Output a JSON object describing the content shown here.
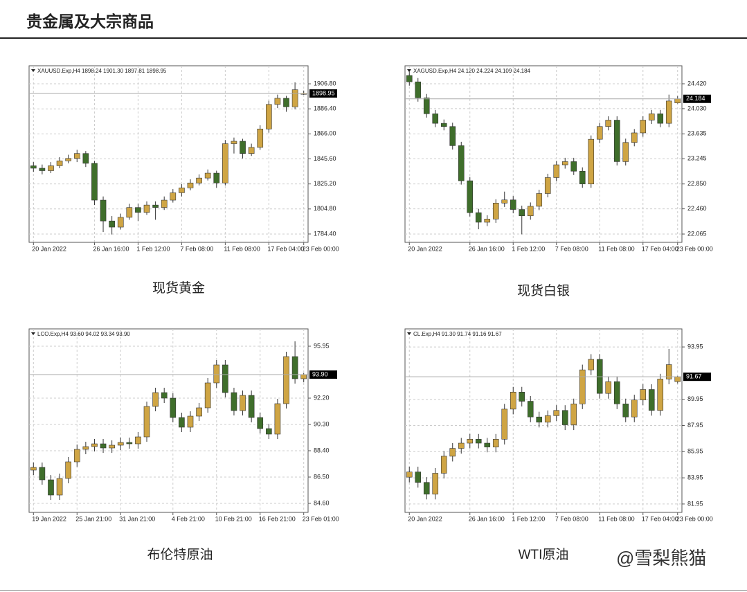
{
  "page": {
    "title": "贵金属及大宗商品",
    "watermark": "@雪梨熊猫"
  },
  "chart_data": [
    {
      "type": "candlestick",
      "header": "XAUUSD.Exp,H4  1898.24 1901.30 1897.81 1898.95",
      "caption": "现货黄金",
      "up_color": "#cfa544",
      "down_color": "#3f6e2b",
      "grid": true,
      "categories": [
        "20 Jan 2022",
        null,
        null,
        null,
        null,
        null,
        null,
        "26 Jan 16:00",
        null,
        null,
        null,
        null,
        "1 Feb 12:00",
        null,
        null,
        null,
        null,
        "7 Feb 08:00",
        null,
        null,
        null,
        null,
        "11 Feb 08:00",
        null,
        null,
        null,
        null,
        "17 Feb 04:00",
        null,
        null,
        null,
        "23 Feb 00:00"
      ],
      "open": [
        1840,
        1838,
        1836,
        1840,
        1844,
        1846,
        1850,
        1842,
        1812,
        1795,
        1790,
        1798,
        1806,
        1802,
        1808,
        1806,
        1812,
        1818,
        1822,
        1826,
        1830,
        1834,
        1826,
        1858,
        1860,
        1850,
        1855,
        1870,
        1890,
        1895,
        1888,
        1898.24
      ],
      "high": [
        1843,
        1841,
        1843,
        1847,
        1849,
        1853,
        1852,
        1844,
        1815,
        1799,
        1801,
        1809,
        1809,
        1811,
        1811,
        1815,
        1821,
        1825,
        1829,
        1833,
        1837,
        1836,
        1861,
        1863,
        1862,
        1858,
        1873,
        1893,
        1898,
        1897,
        1908,
        1901.3
      ],
      "low": [
        1835,
        1833,
        1834,
        1838,
        1842,
        1843,
        1839,
        1808,
        1786,
        1784,
        1788,
        1796,
        1795,
        1800,
        1796,
        1804,
        1810,
        1815,
        1820,
        1824,
        1828,
        1822,
        1824,
        1850,
        1846,
        1848,
        1853,
        1867,
        1887,
        1884,
        1886,
        1897.81
      ],
      "close": [
        1838,
        1836,
        1840,
        1844,
        1846,
        1850,
        1842,
        1812,
        1795,
        1790,
        1798,
        1806,
        1802,
        1808,
        1806,
        1812,
        1818,
        1822,
        1826,
        1830,
        1834,
        1826,
        1858,
        1860,
        1850,
        1855,
        1870,
        1890,
        1895,
        1888,
        1902,
        1898.95
      ],
      "ylim": [
        1777.6,
        1921.5
      ],
      "yticks": [
        {
          "value": 1906.8,
          "label": "1906.80"
        },
        {
          "value": 1886.4,
          "label": "1886.40"
        },
        {
          "value": 1866,
          "label": "1866.00"
        },
        {
          "value": 1845.6,
          "label": "1845.60"
        },
        {
          "value": 1825.2,
          "label": "1825.20"
        },
        {
          "value": 1804.8,
          "label": "1804.80"
        },
        {
          "value": 1784.4,
          "label": "1784.40"
        }
      ],
      "last_price": {
        "value": 1898.95,
        "label": "1898.95"
      }
    },
    {
      "type": "candlestick",
      "header": "XAGUSD.Exp,H4  24.120 24.224 24.109 24.184",
      "caption": "现货白银",
      "up_color": "#cfa544",
      "down_color": "#3f6e2b",
      "grid": true,
      "categories": [
        "20 Jan 2022",
        null,
        null,
        null,
        null,
        null,
        null,
        "26 Jan 16:00",
        null,
        null,
        null,
        null,
        "1 Feb 12:00",
        null,
        null,
        null,
        null,
        "7 Feb 08:00",
        null,
        null,
        null,
        null,
        "11 Feb 08:00",
        null,
        null,
        null,
        null,
        "17 Feb 04:00",
        null,
        null,
        null,
        "23 Feb 00:00"
      ],
      "open": [
        24.55,
        24.45,
        24.2,
        23.95,
        23.8,
        23.75,
        23.45,
        22.9,
        22.4,
        22.25,
        22.3,
        22.55,
        22.6,
        22.45,
        22.35,
        22.5,
        22.7,
        22.95,
        23.15,
        23.2,
        23.05,
        22.85,
        23.55,
        23.75,
        23.85,
        23.2,
        23.5,
        23.65,
        23.85,
        23.95,
        23.8,
        24.12
      ],
      "high": [
        24.61,
        24.51,
        24.26,
        24.01,
        23.86,
        23.81,
        23.51,
        22.96,
        22.46,
        22.36,
        22.61,
        22.73,
        22.66,
        22.51,
        22.56,
        22.76,
        23.01,
        23.21,
        23.26,
        23.26,
        23.11,
        23.61,
        23.81,
        23.91,
        23.91,
        23.56,
        23.71,
        23.91,
        24.01,
        24.01,
        24.25,
        24.224
      ],
      "low": [
        24.39,
        24.14,
        23.89,
        23.74,
        23.69,
        23.39,
        22.84,
        22.34,
        22.14,
        22.19,
        22.24,
        22.49,
        22.39,
        22.06,
        22.29,
        22.44,
        22.64,
        22.89,
        23.09,
        22.99,
        22.79,
        22.79,
        23.49,
        23.69,
        23.14,
        23.14,
        23.44,
        23.59,
        23.79,
        23.74,
        23.74,
        24.109
      ],
      "close": [
        24.45,
        24.2,
        23.95,
        23.8,
        23.75,
        23.45,
        22.9,
        22.4,
        22.25,
        22.3,
        22.55,
        22.6,
        22.45,
        22.35,
        22.5,
        22.7,
        22.95,
        23.15,
        23.2,
        23.05,
        22.85,
        23.55,
        23.75,
        23.85,
        23.2,
        23.5,
        23.65,
        23.85,
        23.95,
        23.8,
        24.15,
        24.184
      ],
      "ylim": [
        21.935,
        24.702
      ],
      "yticks": [
        {
          "value": 24.42,
          "label": "24.420"
        },
        {
          "value": 24.03,
          "label": "24.030"
        },
        {
          "value": 23.635,
          "label": "23.635"
        },
        {
          "value": 23.245,
          "label": "23.245"
        },
        {
          "value": 22.85,
          "label": "22.850"
        },
        {
          "value": 22.46,
          "label": "22.460"
        },
        {
          "value": 22.065,
          "label": "22.065"
        }
      ],
      "last_price": {
        "value": 24.184,
        "label": "24.184"
      }
    },
    {
      "type": "candlestick",
      "header": "LCO.Exp,H4  93.60 94.02 93.34 93.90",
      "caption": "布伦特原油",
      "up_color": "#cfa544",
      "down_color": "#3f6e2b",
      "grid": true,
      "categories": [
        "19 Jan 2022",
        null,
        null,
        null,
        null,
        "25 Jan 21:00",
        null,
        null,
        null,
        null,
        "31 Jan 21:00",
        null,
        null,
        null,
        null,
        null,
        "4 Feb 21:00",
        null,
        null,
        null,
        null,
        "10 Feb 21:00",
        null,
        null,
        null,
        null,
        "16 Feb 21:00",
        null,
        null,
        null,
        null,
        "23 Feb 01:00"
      ],
      "open": [
        87.0,
        87.2,
        86.3,
        85.2,
        86.4,
        87.6,
        88.5,
        88.7,
        88.9,
        88.6,
        88.8,
        89.0,
        88.9,
        89.4,
        91.6,
        92.6,
        92.2,
        90.8,
        90.1,
        90.9,
        91.5,
        93.3,
        94.6,
        92.6,
        91.3,
        92.4,
        90.8,
        90.0,
        89.6,
        91.8,
        95.2,
        93.6
      ],
      "high": [
        87.55,
        87.55,
        86.65,
        86.75,
        87.95,
        88.85,
        89.05,
        89.25,
        89.25,
        89.15,
        89.35,
        89.35,
        89.75,
        91.95,
        92.95,
        92.95,
        92.55,
        91.15,
        91.25,
        91.85,
        93.65,
        94.95,
        94.95,
        92.95,
        92.75,
        92.75,
        91.15,
        90.35,
        92.15,
        95.55,
        96.3,
        94.02
      ],
      "low": [
        86.65,
        85.95,
        84.85,
        84.85,
        86.05,
        87.25,
        88.15,
        88.35,
        88.25,
        88.25,
        88.45,
        88.55,
        88.55,
        89.05,
        91.25,
        91.85,
        90.45,
        89.75,
        89.75,
        90.55,
        91.15,
        92.95,
        92.25,
        90.95,
        90.95,
        90.45,
        89.65,
        89.25,
        89.25,
        91.45,
        93.25,
        93.34
      ],
      "close": [
        87.2,
        86.3,
        85.2,
        86.4,
        87.6,
        88.5,
        88.7,
        88.9,
        88.6,
        88.8,
        89.0,
        88.9,
        89.4,
        91.6,
        92.6,
        92.2,
        90.8,
        90.1,
        90.9,
        91.5,
        93.3,
        94.6,
        92.6,
        91.3,
        92.4,
        90.8,
        90.0,
        89.6,
        91.8,
        95.2,
        93.6,
        93.9
      ],
      "ylim": [
        83.95,
        97.2
      ],
      "yticks": [
        {
          "value": 95.95,
          "label": "95.95"
        },
        {
          "value": 92.2,
          "label": "92.20"
        },
        {
          "value": 90.3,
          "label": "90.30"
        },
        {
          "value": 88.4,
          "label": "88.40"
        },
        {
          "value": 86.5,
          "label": "86.50"
        },
        {
          "value": 84.6,
          "label": "84.60"
        }
      ],
      "last_price": {
        "value": 93.9,
        "label": "93.90"
      }
    },
    {
      "type": "candlestick",
      "header": "CL.Exp,H4  91.30 91.74 91.16 91.67",
      "caption": "WTI原油",
      "up_color": "#cfa544",
      "down_color": "#3f6e2b",
      "grid": true,
      "categories": [
        "20 Jan 2022",
        null,
        null,
        null,
        null,
        null,
        null,
        "26 Jan 16:00",
        null,
        null,
        null,
        null,
        "1 Feb 12:00",
        null,
        null,
        null,
        null,
        "7 Feb 08:00",
        null,
        null,
        null,
        null,
        "11 Feb 08:00",
        null,
        null,
        null,
        null,
        "17 Feb 04:00",
        null,
        null,
        null,
        "23 Feb 00:00"
      ],
      "open": [
        84.0,
        84.4,
        83.6,
        82.7,
        84.3,
        85.6,
        86.2,
        86.6,
        86.9,
        86.6,
        86.3,
        86.9,
        89.2,
        90.5,
        89.8,
        88.6,
        88.2,
        88.7,
        89.1,
        88.0,
        89.6,
        92.2,
        93.0,
        90.4,
        91.3,
        89.6,
        88.6,
        89.9,
        90.7,
        89.1,
        91.5,
        91.3
      ],
      "high": [
        84.8,
        84.8,
        84.0,
        84.7,
        86.0,
        86.6,
        87.0,
        87.3,
        87.3,
        87.0,
        87.3,
        89.6,
        90.9,
        90.9,
        90.2,
        89.0,
        89.1,
        89.5,
        89.5,
        90.0,
        92.6,
        93.4,
        93.4,
        91.7,
        91.7,
        90.0,
        90.3,
        91.1,
        91.1,
        91.9,
        93.8,
        91.74
      ],
      "low": [
        83.6,
        83.2,
        82.3,
        82.3,
        83.9,
        85.2,
        85.8,
        86.2,
        86.2,
        85.9,
        85.9,
        86.5,
        88.8,
        89.4,
        88.2,
        87.8,
        87.8,
        88.3,
        87.6,
        87.6,
        89.2,
        91.8,
        90.0,
        90.0,
        89.2,
        88.2,
        88.2,
        89.5,
        88.7,
        88.7,
        91.1,
        91.16
      ],
      "close": [
        84.4,
        83.6,
        82.7,
        84.3,
        85.6,
        86.2,
        86.6,
        86.9,
        86.6,
        86.3,
        86.9,
        89.2,
        90.5,
        89.8,
        88.6,
        88.2,
        88.7,
        89.1,
        88.0,
        89.6,
        92.2,
        93.0,
        90.4,
        91.3,
        89.6,
        88.6,
        89.9,
        90.7,
        89.1,
        91.5,
        92.6,
        91.67
      ],
      "ylim": [
        81.31,
        95.33
      ],
      "yticks": [
        {
          "value": 93.95,
          "label": "93.95"
        },
        {
          "value": 89.95,
          "label": "89.95"
        },
        {
          "value": 87.95,
          "label": "87.95"
        },
        {
          "value": 85.95,
          "label": "85.95"
        },
        {
          "value": 83.95,
          "label": "83.95"
        },
        {
          "value": 81.95,
          "label": "81.95"
        }
      ],
      "last_price": {
        "value": 91.67,
        "label": "91.67"
      }
    }
  ]
}
